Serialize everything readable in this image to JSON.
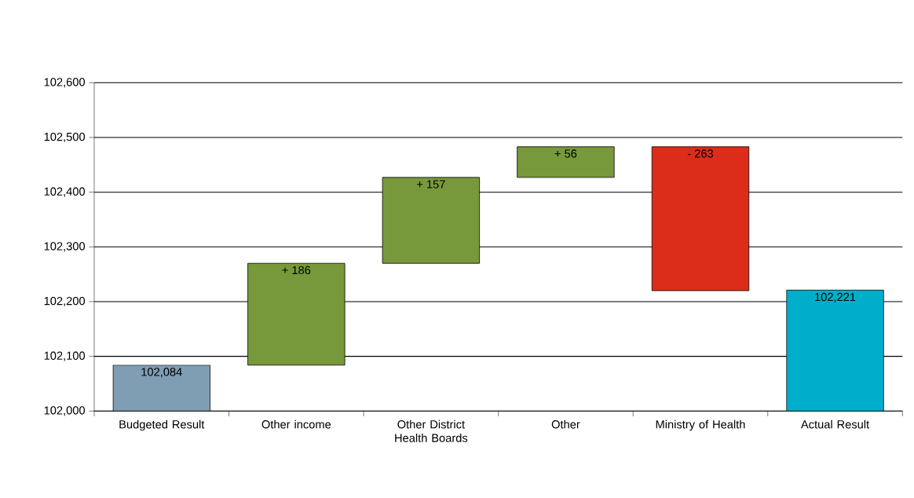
{
  "chart_data": {
    "type": "bar",
    "categories": [
      "Budgeted Result",
      "Other income",
      "Other District Health Boards",
      "Other",
      "Ministry of Health",
      "Actual Result"
    ],
    "base": [
      102000,
      102084,
      102270,
      102427,
      102483,
      102000
    ],
    "values": [
      84,
      186,
      157,
      56,
      -263,
      221
    ],
    "colors": [
      "#7f9db3",
      "#77993b",
      "#77993b",
      "#77993b",
      "#dc2c1a",
      "#00aecb"
    ],
    "value_labels": [
      "102,084",
      "+ 186",
      "+ 157",
      "+ 56",
      "- 263",
      "102,221"
    ],
    "ylim": [
      102000,
      102600
    ],
    "yticks": [
      {
        "value": 102000,
        "label": "102,000"
      },
      {
        "value": 102100,
        "label": "102,100"
      },
      {
        "value": 102200,
        "label": "102,200"
      },
      {
        "value": 102300,
        "label": "102,300"
      },
      {
        "value": 102400,
        "label": "102,400"
      },
      {
        "value": 102500,
        "label": "102,500"
      },
      {
        "value": 102600,
        "label": "102,600"
      }
    ],
    "grid": "y"
  }
}
